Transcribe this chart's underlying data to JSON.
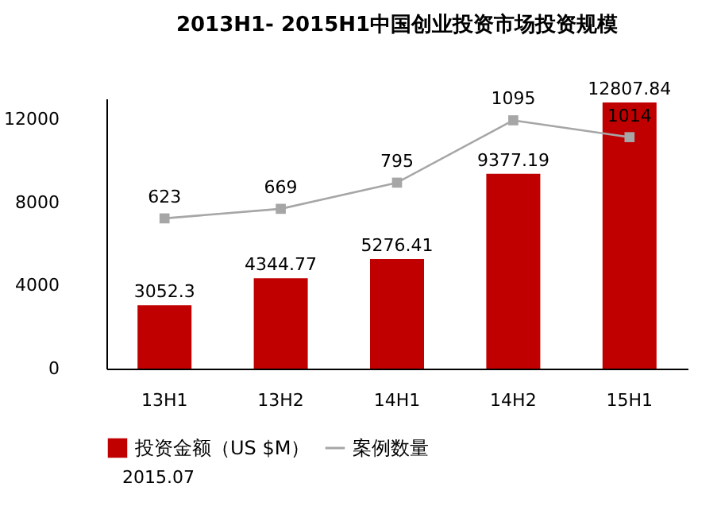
{
  "chart_data": {
    "type": "bar",
    "title": "2013H1- 2015H1中国创业投资市场投资规模",
    "categories": [
      "13H1",
      "13H2",
      "14H1",
      "14H2",
      "15H1"
    ],
    "series": [
      {
        "name": "投资金额（US $M）",
        "color": "#c00000",
        "values": [
          3052.3,
          4344.77,
          5276.41,
          9377.19,
          12807.84
        ]
      },
      {
        "name": "案例数量",
        "type": "line",
        "axis": "y2",
        "color": "#a6a6a6",
        "values": [
          623,
          669,
          795,
          1095,
          1014
        ]
      }
    ],
    "ylim": [
      0,
      13000
    ],
    "yticks": [
      0,
      4000,
      8000,
      12000
    ],
    "y2lim": [
      -100,
      1200
    ],
    "tick_labels": "xy",
    "data_labels": true,
    "marker": "square",
    "grid": false,
    "legend": "bottom",
    "annotations": [
      "2015.07"
    ]
  }
}
